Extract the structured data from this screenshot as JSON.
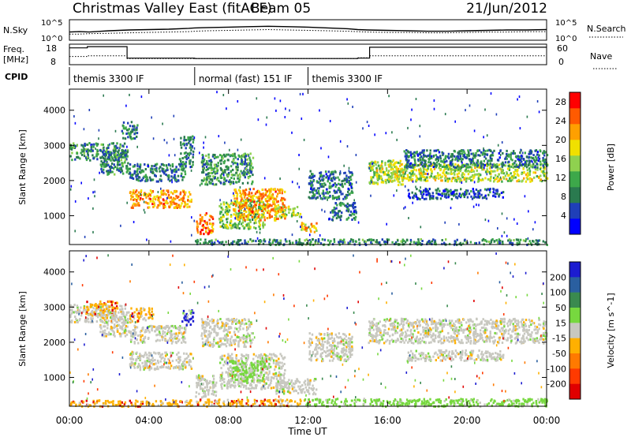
{
  "header": {
    "title": "Christmas Valley East (fitACF)",
    "beam": "Beam 05",
    "date": "21/Jun/2012"
  },
  "colors": {
    "power": [
      "#0000ff",
      "#1f3fb8",
      "#2a7a4f",
      "#3da84a",
      "#8fd14f",
      "#f0e000",
      "#ffa000",
      "#ff5a00",
      "#ff0000"
    ],
    "velocity_pos": [
      "#1c1cd0",
      "#2a5fa0",
      "#3a8a4f",
      "#77d83f"
    ],
    "velocity_zero": "#c8c8c0",
    "velocity_neg": [
      "#ffb000",
      "#ff7a00",
      "#ff3a00",
      "#e00000"
    ]
  },
  "chart_data": [
    {
      "id": "nsky-nsearch",
      "type": "line",
      "left_label": "N.Sky",
      "right_label": "N.Search",
      "yticks_left": [
        "10^5",
        "10^0"
      ],
      "yticks_right": [
        "10^5",
        "10^0"
      ],
      "x_hours": [
        0,
        0.5,
        1.0,
        2.0,
        3.0,
        4.0,
        5.0,
        6.0,
        6.3,
        7,
        8,
        9,
        10,
        11,
        12,
        13,
        14,
        14.5,
        15,
        16,
        17,
        18,
        19,
        20,
        21,
        22,
        23,
        24
      ],
      "series": [
        {
          "values": [
            2.0,
            2.1,
            2.0,
            2.3,
            2.5,
            2.6,
            2.7,
            2.9,
            3.0,
            3.1,
            3.2,
            3.3,
            3.4,
            3.3,
            3.2,
            3.0,
            2.8,
            2.6,
            2.5,
            2.4,
            2.3,
            2.2,
            2.2,
            2.3,
            2.4,
            2.5,
            2.5,
            2.6
          ]
        },
        {
          "values": [
            1.5,
            1.5,
            1.6,
            1.7,
            1.8,
            1.9,
            2.0,
            2.1,
            2.2,
            2.3,
            2.4,
            2.5,
            2.6,
            2.5,
            2.4,
            2.3,
            2.2,
            2.1,
            2.0,
            1.9,
            1.9,
            1.8,
            1.8,
            1.9,
            2.0,
            2.0,
            2.1,
            2.1
          ]
        }
      ]
    },
    {
      "id": "freq-nave",
      "type": "line",
      "left_label": "Freq.",
      "left_unit": "[MHz]",
      "right_label": "Nave",
      "yticks_left": [
        "18",
        "8"
      ],
      "yticks_right": [
        "60",
        "0"
      ],
      "steps": [
        {
          "from": 0.0,
          "to": 0.9,
          "freq": 16.2,
          "nave": 24
        },
        {
          "from": 0.9,
          "to": 2.9,
          "freq": 16.8,
          "nave": 26
        },
        {
          "from": 2.9,
          "to": 6.3,
          "freq": 11.2,
          "nave": 18
        },
        {
          "from": 6.3,
          "to": 14.5,
          "freq": 11.0,
          "nave": 18
        },
        {
          "from": 14.5,
          "to": 15.1,
          "freq": 11.2,
          "nave": 20
        },
        {
          "from": 15.1,
          "to": 24.0,
          "freq": 16.5,
          "nave": 26
        }
      ]
    },
    {
      "id": "cpid",
      "type": "table",
      "label": "CPID",
      "segments": [
        {
          "from": 0.0,
          "to": 6.3,
          "text": "themis 3300 IF"
        },
        {
          "from": 6.3,
          "to": 12.0,
          "text": "normal (fast) 151 IF"
        },
        {
          "from": 12.0,
          "to": 24.0,
          "text": "themis 3300 IF"
        }
      ]
    },
    {
      "id": "power",
      "type": "heatmap",
      "ylabel": "Slant Range [km]",
      "xlim_hours": [
        0,
        24
      ],
      "ylim_km": [
        180,
        4600
      ],
      "yticks": [
        1000,
        2000,
        3000,
        4000
      ],
      "colorbar_label": "Power [dB]",
      "colorbar_ticks": [
        4,
        8,
        12,
        16,
        20,
        24,
        28
      ],
      "colorbar_range": [
        0,
        30
      ],
      "bands": [
        {
          "t0": 0.0,
          "t1": 2.8,
          "r0": 2600,
          "r1": 3100,
          "v": 10
        },
        {
          "t0": 1.5,
          "t1": 3.0,
          "r0": 2200,
          "r1": 2900,
          "v": 9
        },
        {
          "t0": 2.6,
          "t1": 3.4,
          "r0": 3200,
          "r1": 3700,
          "v": 9
        },
        {
          "t0": 3.0,
          "t1": 5.8,
          "r0": 2000,
          "r1": 2500,
          "v": 8
        },
        {
          "t0": 3.0,
          "t1": 6.1,
          "r0": 1250,
          "r1": 1750,
          "v": 22
        },
        {
          "t0": 5.5,
          "t1": 6.2,
          "r0": 2400,
          "r1": 3300,
          "v": 8
        },
        {
          "t0": 6.3,
          "t1": 7.2,
          "r0": 500,
          "r1": 1100,
          "v": 24
        },
        {
          "t0": 7.5,
          "t1": 9.8,
          "r0": 650,
          "r1": 1500,
          "v": 14
        },
        {
          "t0": 8.2,
          "t1": 10.8,
          "r0": 900,
          "r1": 1800,
          "v": 22
        },
        {
          "t0": 10.3,
          "t1": 11.6,
          "r0": 1000,
          "r1": 1300,
          "v": 17
        },
        {
          "t0": 6.6,
          "t1": 9.2,
          "r0": 1900,
          "r1": 2800,
          "v": 10
        },
        {
          "t0": 11.6,
          "t1": 12.4,
          "r0": 550,
          "r1": 850,
          "v": 20
        },
        {
          "t0": 12.0,
          "t1": 14.2,
          "r0": 1500,
          "r1": 2300,
          "v": 8
        },
        {
          "t0": 13.0,
          "t1": 14.4,
          "r0": 900,
          "r1": 1400,
          "v": 8
        },
        {
          "t0": 15.0,
          "t1": 16.8,
          "r0": 1900,
          "r1": 2600,
          "v": 16
        },
        {
          "t0": 16.0,
          "t1": 24.0,
          "r0": 2000,
          "r1": 2500,
          "v": 16
        },
        {
          "t0": 16.8,
          "t1": 24.0,
          "r0": 2400,
          "r1": 2900,
          "v": 8
        },
        {
          "t0": 17.0,
          "t1": 21.8,
          "r0": 1500,
          "r1": 1800,
          "v": 6
        },
        {
          "t0": 6.3,
          "t1": 24.0,
          "r0": 200,
          "r1": 360,
          "v": 9
        }
      ]
    },
    {
      "id": "velocity",
      "type": "heatmap",
      "ylabel": "Slant Range [km]",
      "xlabel": "Time UT",
      "xlim_hours": [
        0,
        24
      ],
      "ylim_km": [
        180,
        4600
      ],
      "yticks": [
        1000,
        2000,
        3000,
        4000
      ],
      "xticks": [
        "00:00",
        "04:00",
        "08:00",
        "12:00",
        "16:00",
        "20:00",
        "00:00"
      ],
      "colorbar_label": "Velocity [m s^-1]",
      "colorbar_ticks": [
        "200",
        "100",
        "50",
        "15",
        "-15",
        "-50",
        "-100",
        "-200"
      ],
      "bands": [
        {
          "t0": 0.0,
          "t1": 2.8,
          "r0": 2600,
          "r1": 3100,
          "c": "zero"
        },
        {
          "t0": 0.8,
          "t1": 2.4,
          "r0": 2800,
          "r1": 3200,
          "c": "neg0"
        },
        {
          "t0": 1.5,
          "t1": 3.0,
          "r0": 2200,
          "r1": 2900,
          "c": "zero"
        },
        {
          "t0": 3.0,
          "t1": 4.2,
          "r0": 2600,
          "r1": 3000,
          "c": "neg0"
        },
        {
          "t0": 3.0,
          "t1": 5.8,
          "r0": 2000,
          "r1": 2500,
          "c": "zero"
        },
        {
          "t0": 3.0,
          "t1": 6.1,
          "r0": 1250,
          "r1": 1750,
          "c": "zero"
        },
        {
          "t0": 5.6,
          "t1": 6.2,
          "r0": 2500,
          "r1": 2950,
          "c": "pos0"
        },
        {
          "t0": 6.3,
          "t1": 7.4,
          "r0": 450,
          "r1": 1100,
          "c": "zero"
        },
        {
          "t0": 7.5,
          "t1": 10.8,
          "r0": 700,
          "r1": 1700,
          "c": "zero"
        },
        {
          "t0": 8.0,
          "t1": 9.8,
          "r0": 900,
          "r1": 1500,
          "c": "pos3"
        },
        {
          "t0": 6.6,
          "t1": 9.2,
          "r0": 1900,
          "r1": 2700,
          "c": "zero"
        },
        {
          "t0": 10.3,
          "t1": 12.4,
          "r0": 550,
          "r1": 1000,
          "c": "zero"
        },
        {
          "t0": 12.0,
          "t1": 14.2,
          "r0": 1500,
          "r1": 2300,
          "c": "zero"
        },
        {
          "t0": 15.0,
          "t1": 24.0,
          "r0": 2000,
          "r1": 2700,
          "c": "zero"
        },
        {
          "t0": 17.0,
          "t1": 21.8,
          "r0": 1500,
          "r1": 1800,
          "c": "zero"
        },
        {
          "t0": 0.0,
          "t1": 6.2,
          "r0": 200,
          "r1": 380,
          "c": "neg0"
        },
        {
          "t0": 6.3,
          "t1": 11.8,
          "r0": 200,
          "r1": 400,
          "c": "neg0"
        },
        {
          "t0": 11.8,
          "t1": 24.0,
          "r0": 200,
          "r1": 420,
          "c": "pos3"
        }
      ]
    }
  ]
}
